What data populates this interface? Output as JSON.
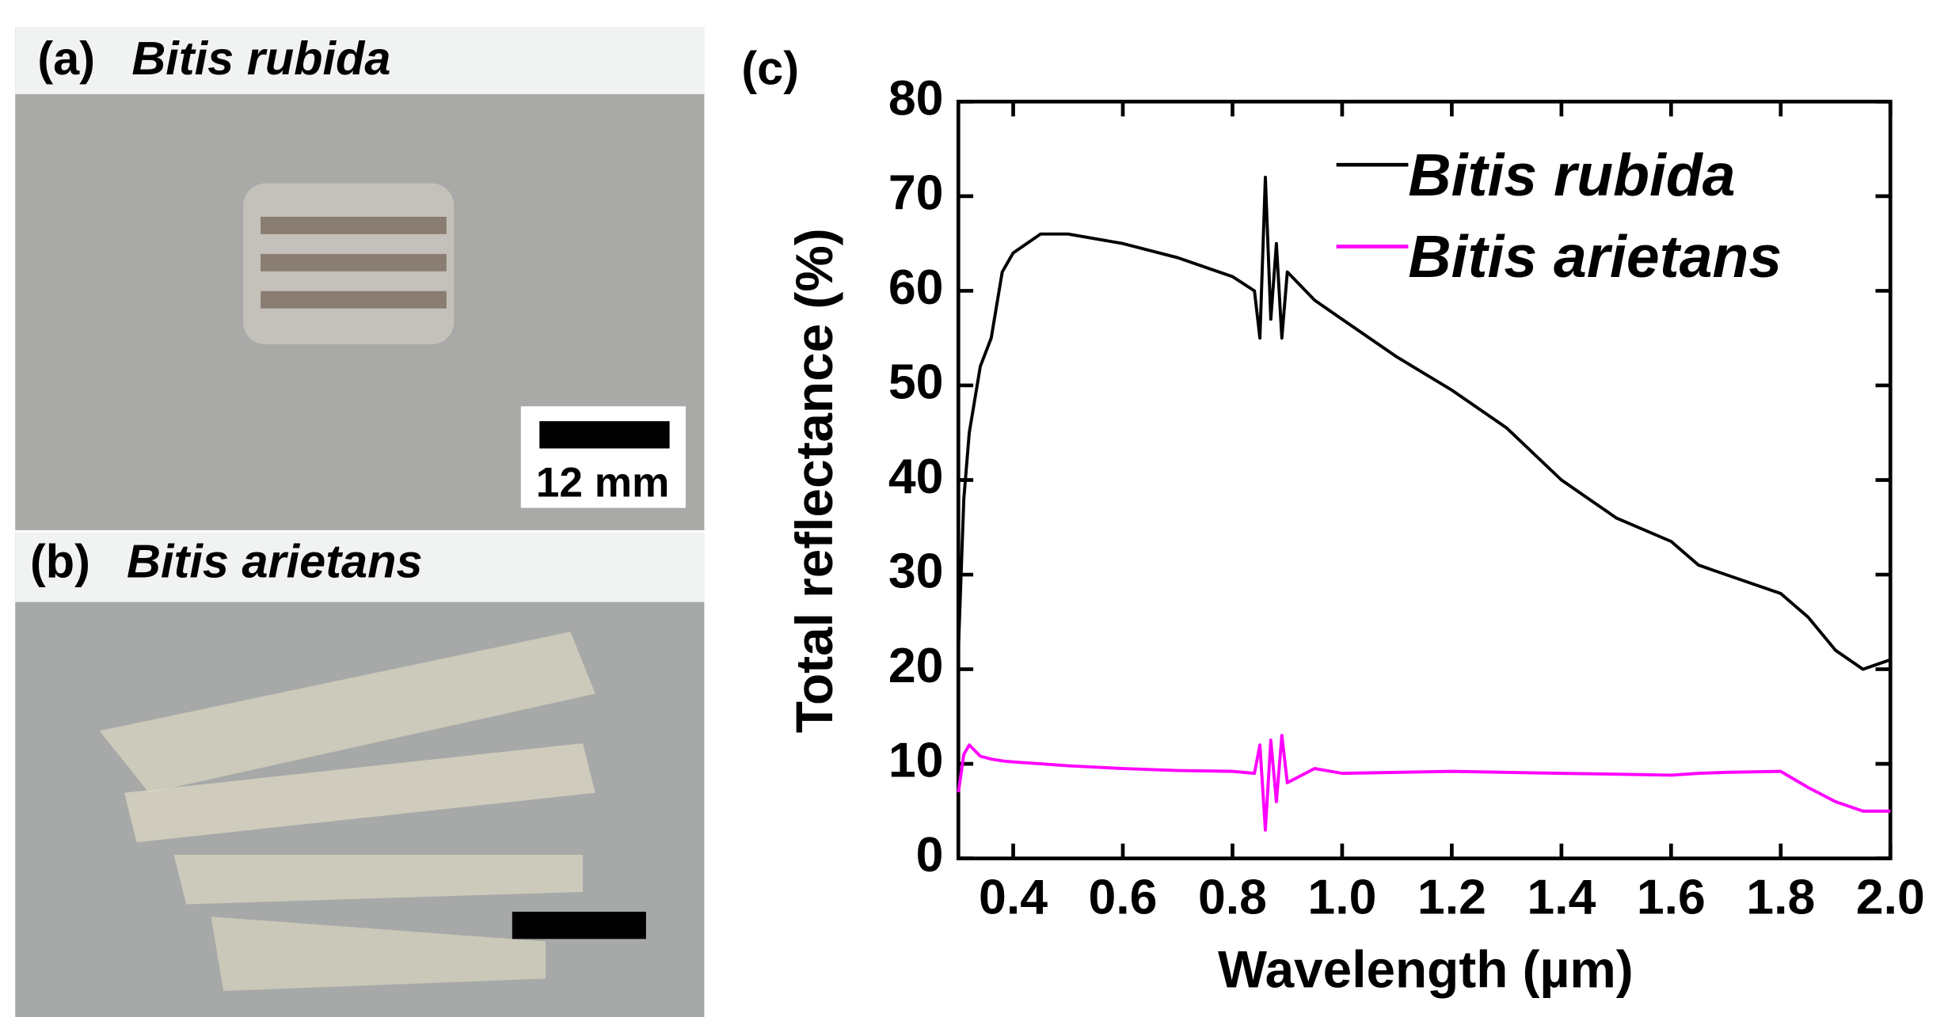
{
  "panels": [
    {
      "label": "(a)",
      "name": "Bitis rubida",
      "scale_bar": "12 mm"
    },
    {
      "label": "(b)",
      "name": "Bitis arietans"
    }
  ],
  "chart_data": {
    "type": "line",
    "panel_label": "(c)",
    "x_label": "Wavelength (µm)",
    "y_label": "Total reflectance (%)",
    "x": [
      0.3,
      0.31,
      0.32,
      0.34,
      0.36,
      0.38,
      0.4,
      0.45,
      0.5,
      0.6,
      0.7,
      0.8,
      0.84,
      0.85,
      0.86,
      0.87,
      0.88,
      0.89,
      0.9,
      0.95,
      1.0,
      1.1,
      1.2,
      1.3,
      1.4,
      1.5,
      1.6,
      1.65,
      1.7,
      1.8,
      1.85,
      1.9,
      1.95,
      2.0
    ],
    "series": [
      {
        "name": "Bitis rubida",
        "color": "#000000",
        "values": [
          22,
          38,
          45,
          52,
          55,
          62,
          64,
          66,
          66,
          65,
          63.5,
          61.5,
          60,
          55,
          72,
          57,
          65,
          55,
          62,
          59,
          57,
          53,
          49.5,
          45.5,
          40,
          36,
          33.5,
          31,
          30,
          28,
          25.5,
          22,
          20,
          21
        ]
      },
      {
        "name": "Bitis arietans",
        "color": "#ff00ff",
        "values": [
          7,
          11,
          12,
          10.8,
          10.5,
          10.3,
          10.2,
          10,
          9.8,
          9.5,
          9.3,
          9.2,
          9,
          12,
          3,
          12.5,
          6,
          13,
          8,
          9.5,
          9,
          9.1,
          9.2,
          9.1,
          9,
          8.9,
          8.8,
          9,
          9.1,
          9.2,
          7.5,
          6,
          5,
          5
        ]
      }
    ],
    "xlim": [
      0.3,
      2.0
    ],
    "ylim": [
      0,
      80
    ],
    "xticks": [
      0.4,
      0.6,
      0.8,
      {
        "value": 1,
        "label": "1.0"
      },
      1.2,
      1.4,
      1.6,
      1.8,
      {
        "value": 2,
        "label": "2.0"
      }
    ],
    "yticks": [
      0,
      10,
      20,
      30,
      40,
      50,
      60,
      70,
      80
    ],
    "legend": "upper right"
  }
}
